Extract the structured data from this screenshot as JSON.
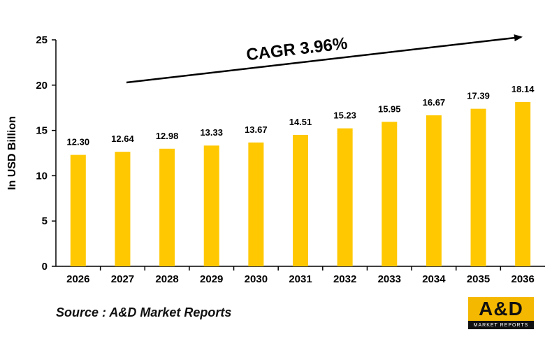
{
  "chart_data": {
    "type": "bar",
    "categories": [
      "2026",
      "2027",
      "2028",
      "2029",
      "2030",
      "2031",
      "2032",
      "2033",
      "2034",
      "2035",
      "2036"
    ],
    "values": [
      12.3,
      12.64,
      12.98,
      13.33,
      13.67,
      14.51,
      15.23,
      15.95,
      16.67,
      17.39,
      18.14
    ],
    "data_labels": [
      "12.30",
      "12.64",
      "12.98",
      "13.33",
      "13.67",
      "14.51",
      "15.23",
      "15.95",
      "16.67",
      "17.39",
      "18.14"
    ],
    "ylabel": "In USD Billion",
    "ylim": [
      0,
      25
    ],
    "yticks": [
      0,
      5,
      10,
      15,
      20,
      25
    ],
    "grid": false,
    "bar_color": "#ffc800",
    "annotation": "CAGR 3.96%"
  },
  "source": "Source : A&D Market Reports",
  "logo": {
    "mark": "A&D",
    "subtitle": "MARKET REPORTS",
    "color": "#f5b800"
  }
}
